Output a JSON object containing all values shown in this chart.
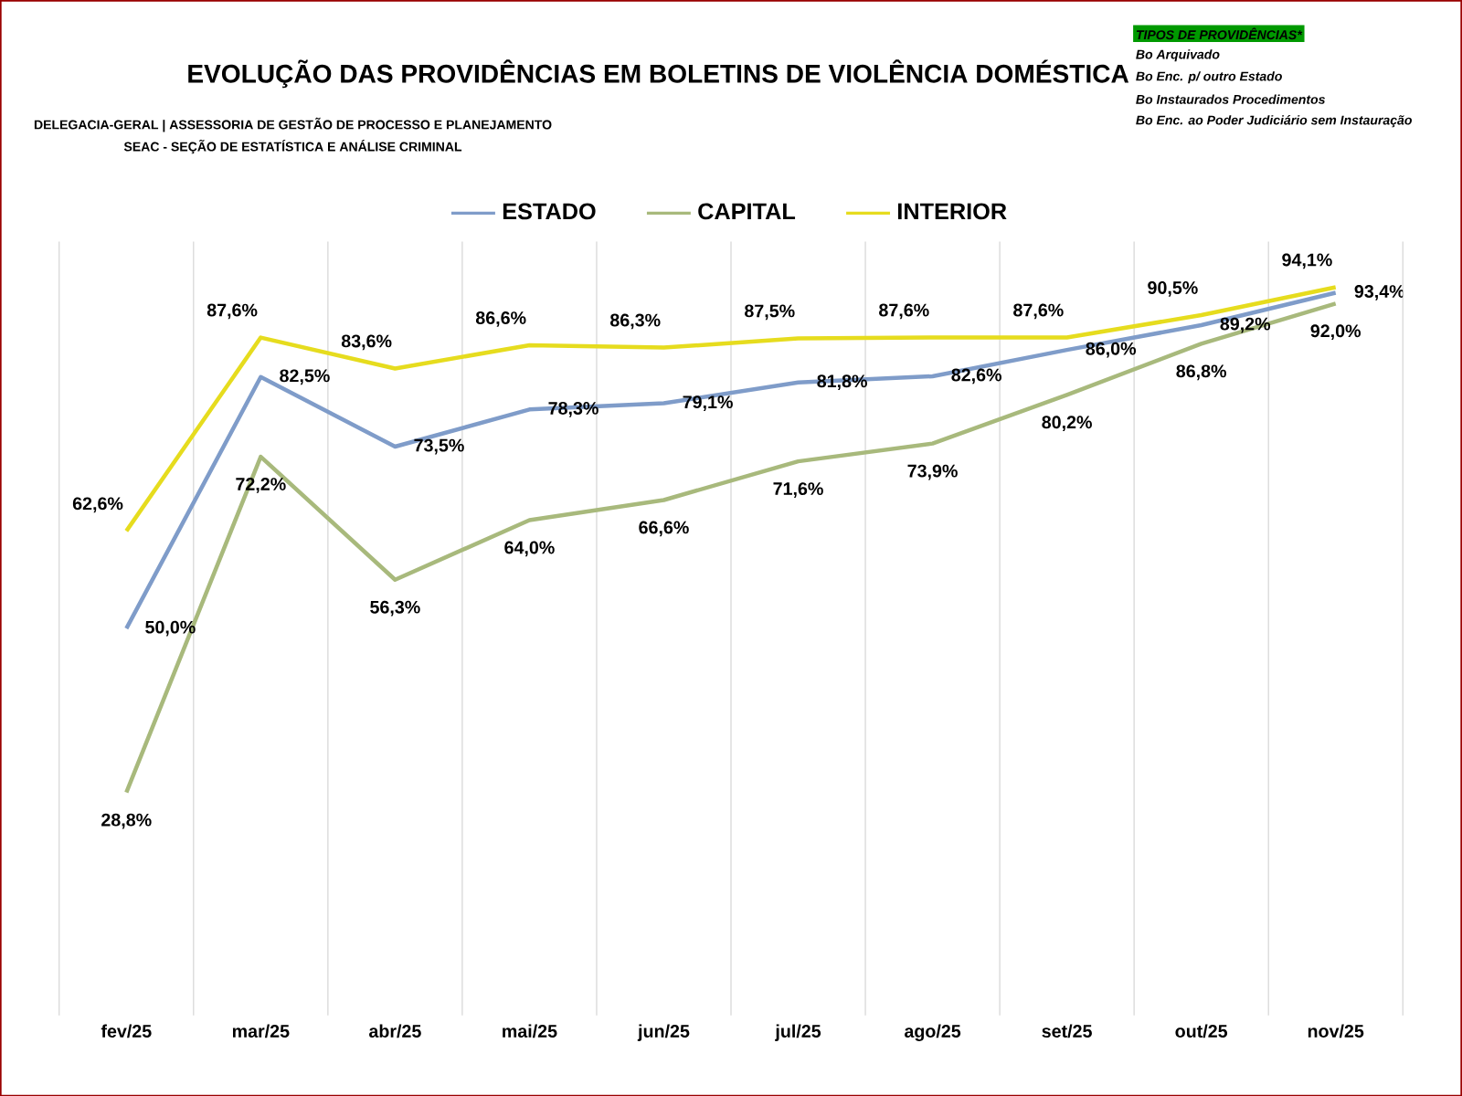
{
  "chart_data": {
    "type": "line",
    "title": "EVOLUÇÃO DAS PROVIDÊNCIAS EM BOLETINS DE VIOLÊNCIA DOMÉSTICA",
    "categories": [
      "fev/25",
      "mar/25",
      "abr/25",
      "mai/25",
      "jun/25",
      "jul/25",
      "ago/25",
      "set/25",
      "out/25",
      "nov/25"
    ],
    "ylim": [
      0,
      100
    ],
    "grid": "x",
    "legend": "top",
    "marker": "none",
    "line_style": "solid",
    "series": [
      {
        "name": "ESTADO",
        "color": "#7f9cc9",
        "values": [
          50.0,
          82.5,
          73.5,
          78.3,
          79.1,
          81.8,
          82.6,
          86.0,
          89.2,
          93.4
        ],
        "value_labels": [
          "50,0%",
          "82,5%",
          "73,5%",
          "78,3%",
          "79,1%",
          "81,8%",
          "82,6%",
          "86,0%",
          "89,2%",
          "93,4%"
        ]
      },
      {
        "name": "CAPITAL",
        "color": "#a8b97c",
        "values": [
          28.8,
          72.2,
          56.3,
          64.0,
          66.6,
          71.6,
          73.9,
          80.2,
          86.8,
          92.0
        ],
        "value_labels": [
          "28,8%",
          "72,2%",
          "56,3%",
          "64,0%",
          "66,6%",
          "71,6%",
          "73,9%",
          "80,2%",
          "86,8%",
          "92,0%"
        ]
      },
      {
        "name": "INTERIOR",
        "color": "#e6dc1e",
        "values": [
          62.6,
          87.6,
          83.6,
          86.6,
          86.3,
          87.5,
          87.6,
          87.6,
          90.5,
          94.1
        ],
        "value_labels": [
          "62,6%",
          "87,6%",
          "83,6%",
          "86,6%",
          "86,3%",
          "87,5%",
          "87,6%",
          "87,6%",
          "90,5%",
          "94,1%"
        ]
      }
    ],
    "annotations": [
      "DELEGACIA-GERAL | ASSESSORIA DE GESTÃO DE PROCESSO E PLANEJAMENTO",
      "SEAC - SEÇÃO DE ESTATÍSTICA E ANÁLISE CRIMINAL",
      "TIPOS DE PROVIDÊNCIAS*",
      "Bo Arquivado",
      "Bo Enc. p/ outro Estado",
      "Bo Instaurados Procedimentos",
      "Bo Enc. ao Poder Judiciário sem Instauração"
    ]
  }
}
